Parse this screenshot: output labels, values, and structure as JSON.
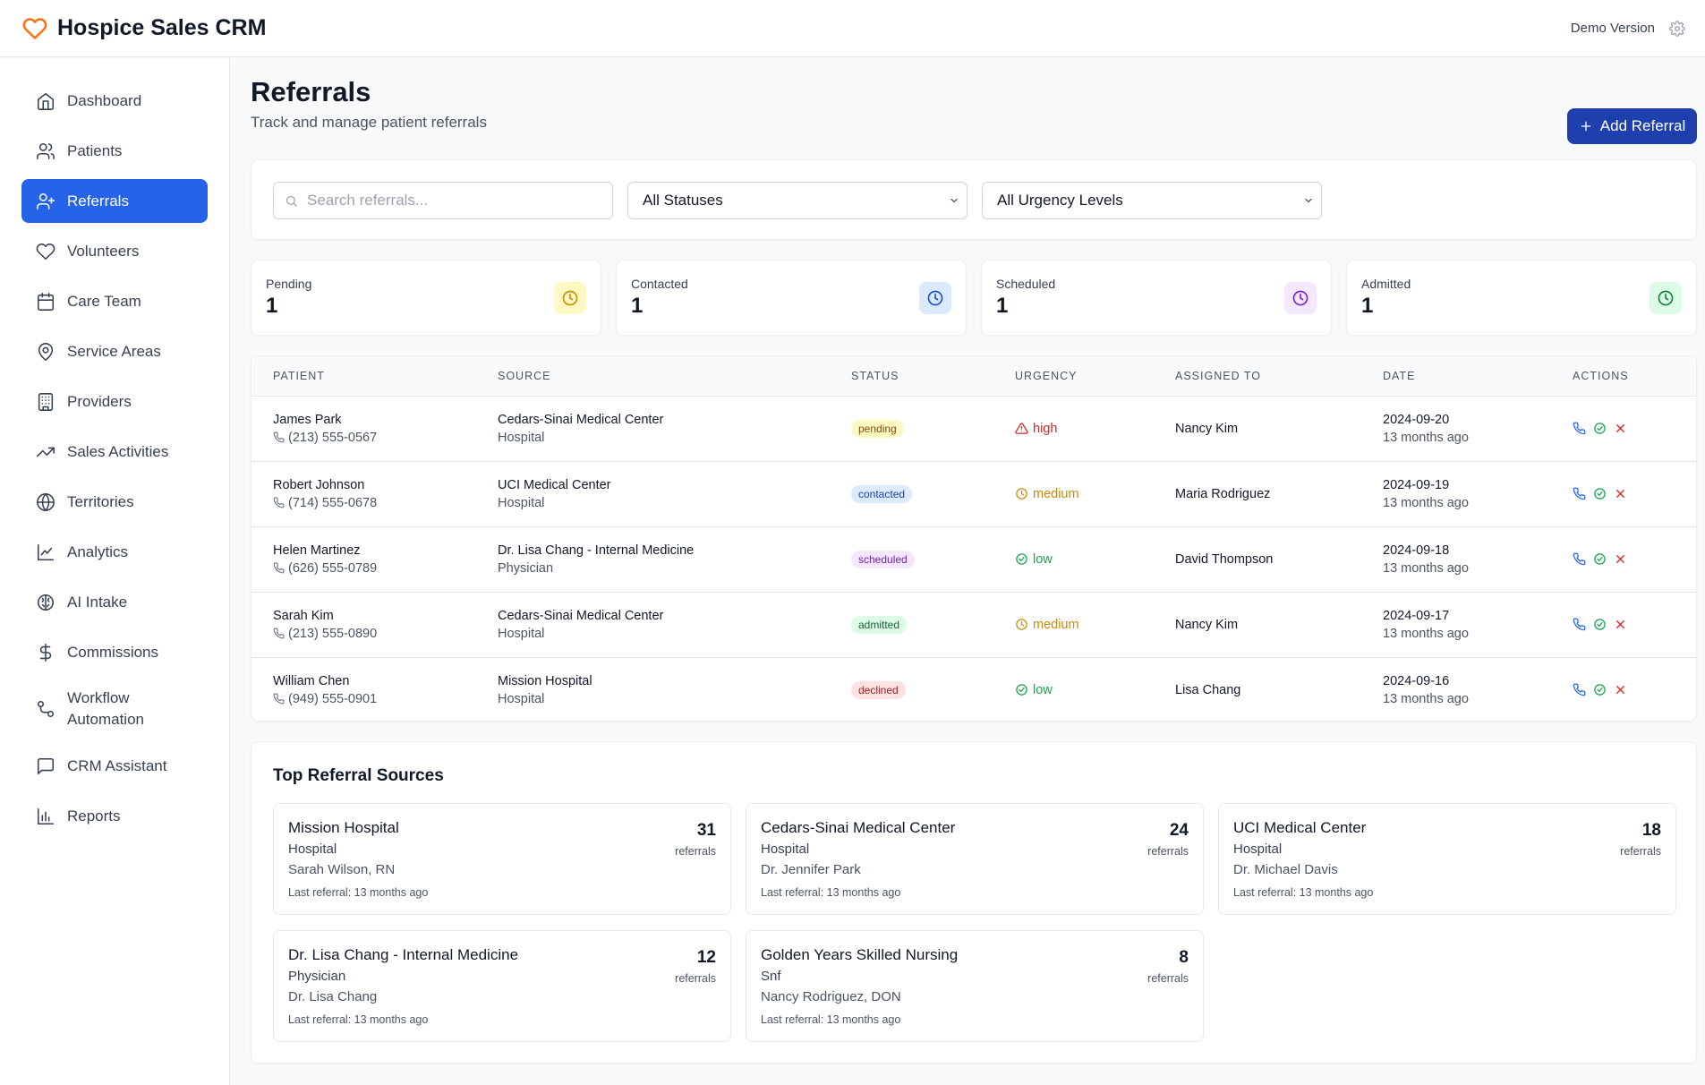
{
  "app": {
    "title": "Hospice Sales CRM",
    "demo_label": "Demo Version"
  },
  "colors": {
    "primary": "#2563eb",
    "button": "#1e40af",
    "brand_icon": "#f97316"
  },
  "sidebar": {
    "items": [
      {
        "label": "Dashboard",
        "icon": "home-icon",
        "active": false
      },
      {
        "label": "Patients",
        "icon": "users-icon",
        "active": false
      },
      {
        "label": "Referrals",
        "icon": "user-plus-icon",
        "active": true
      },
      {
        "label": "Volunteers",
        "icon": "heart-icon",
        "active": false
      },
      {
        "label": "Care Team",
        "icon": "calendar-icon",
        "active": false
      },
      {
        "label": "Service Areas",
        "icon": "map-pin-icon",
        "active": false
      },
      {
        "label": "Providers",
        "icon": "building-icon",
        "active": false
      },
      {
        "label": "Sales Activities",
        "icon": "trending-up-icon",
        "active": false
      },
      {
        "label": "Territories",
        "icon": "globe-icon",
        "active": false
      },
      {
        "label": "Analytics",
        "icon": "line-chart-icon",
        "active": false
      },
      {
        "label": "AI Intake",
        "icon": "brain-icon",
        "active": false
      },
      {
        "label": "Commissions",
        "icon": "dollar-icon",
        "active": false
      },
      {
        "label": "Workflow Automation",
        "icon": "workflow-icon",
        "active": false
      },
      {
        "label": "CRM Assistant",
        "icon": "message-square-icon",
        "active": false
      },
      {
        "label": "Reports",
        "icon": "bar-chart-icon",
        "active": false
      }
    ]
  },
  "page": {
    "title": "Referrals",
    "subtitle": "Track and manage patient referrals",
    "add_button": "Add Referral"
  },
  "filters": {
    "search_placeholder": "Search referrals...",
    "status": "All Statuses",
    "urgency": "All Urgency Levels"
  },
  "stats": [
    {
      "label": "Pending",
      "value": "1",
      "bg": "#fef9c3",
      "color": "#ca8a04"
    },
    {
      "label": "Contacted",
      "value": "1",
      "bg": "#dbeafe",
      "color": "#1d4ed8"
    },
    {
      "label": "Scheduled",
      "value": "1",
      "bg": "#f3e8ff",
      "color": "#7e22ce"
    },
    {
      "label": "Admitted",
      "value": "1",
      "bg": "#dcfce7",
      "color": "#15803d"
    }
  ],
  "table": {
    "headers": [
      "PATIENT",
      "SOURCE",
      "STATUS",
      "URGENCY",
      "ASSIGNED TO",
      "DATE",
      "ACTIONS"
    ],
    "rows": [
      {
        "name": "James Park",
        "phone": "(213) 555-0567",
        "source": "Cedars-Sinai Medical Center",
        "source_type": "Hospital",
        "status": "pending",
        "status_bg": "#fef9c3",
        "status_color": "#854d0e",
        "urgency": "high",
        "urgency_color": "#dc2626",
        "urgency_icon": "alert-triangle-icon",
        "assigned": "Nancy Kim",
        "date": "2024-09-20",
        "ago": "13 months ago"
      },
      {
        "name": "Robert Johnson",
        "phone": "(714) 555-0678",
        "source": "UCI Medical Center",
        "source_type": "Hospital",
        "status": "contacted",
        "status_bg": "#dbeafe",
        "status_color": "#1e40af",
        "urgency": "medium",
        "urgency_color": "#ca8a04",
        "urgency_icon": "clock-icon",
        "assigned": "Maria Rodriguez",
        "date": "2024-09-19",
        "ago": "13 months ago"
      },
      {
        "name": "Helen Martinez",
        "phone": "(626) 555-0789",
        "source": "Dr. Lisa Chang - Internal Medicine",
        "source_type": "Physician",
        "status": "scheduled",
        "status_bg": "#f3e8ff",
        "status_color": "#6b21a8",
        "urgency": "low",
        "urgency_color": "#16a34a",
        "urgency_icon": "check-circle-icon",
        "assigned": "David Thompson",
        "date": "2024-09-18",
        "ago": "13 months ago"
      },
      {
        "name": "Sarah Kim",
        "phone": "(213) 555-0890",
        "source": "Cedars-Sinai Medical Center",
        "source_type": "Hospital",
        "status": "admitted",
        "status_bg": "#dcfce7",
        "status_color": "#166534",
        "urgency": "medium",
        "urgency_color": "#ca8a04",
        "urgency_icon": "clock-icon",
        "assigned": "Nancy Kim",
        "date": "2024-09-17",
        "ago": "13 months ago"
      },
      {
        "name": "William Chen",
        "phone": "(949) 555-0901",
        "source": "Mission Hospital",
        "source_type": "Hospital",
        "status": "declined",
        "status_bg": "#fee2e2",
        "status_color": "#991b1b",
        "urgency": "low",
        "urgency_color": "#16a34a",
        "urgency_icon": "check-circle-icon",
        "assigned": "Lisa Chang",
        "date": "2024-09-16",
        "ago": "13 months ago"
      }
    ]
  },
  "sources": {
    "title": "Top Referral Sources",
    "items": [
      {
        "name": "Mission Hospital",
        "type": "Hospital",
        "contact": "Sarah Wilson, RN",
        "last": "Last referral: 13 months ago",
        "count": "31",
        "count_label": "referrals"
      },
      {
        "name": "Cedars-Sinai Medical Center",
        "type": "Hospital",
        "contact": "Dr. Jennifer Park",
        "last": "Last referral: 13 months ago",
        "count": "24",
        "count_label": "referrals"
      },
      {
        "name": "UCI Medical Center",
        "type": "Hospital",
        "contact": "Dr. Michael Davis",
        "last": "Last referral: 13 months ago",
        "count": "18",
        "count_label": "referrals"
      },
      {
        "name": "Dr. Lisa Chang - Internal Medicine",
        "type": "Physician",
        "contact": "Dr. Lisa Chang",
        "last": "Last referral: 13 months ago",
        "count": "12",
        "count_label": "referrals"
      },
      {
        "name": "Golden Years Skilled Nursing",
        "type": "Snf",
        "contact": "Nancy Rodriguez, DON",
        "last": "Last referral: 13 months ago",
        "count": "8",
        "count_label": "referrals"
      }
    ]
  }
}
